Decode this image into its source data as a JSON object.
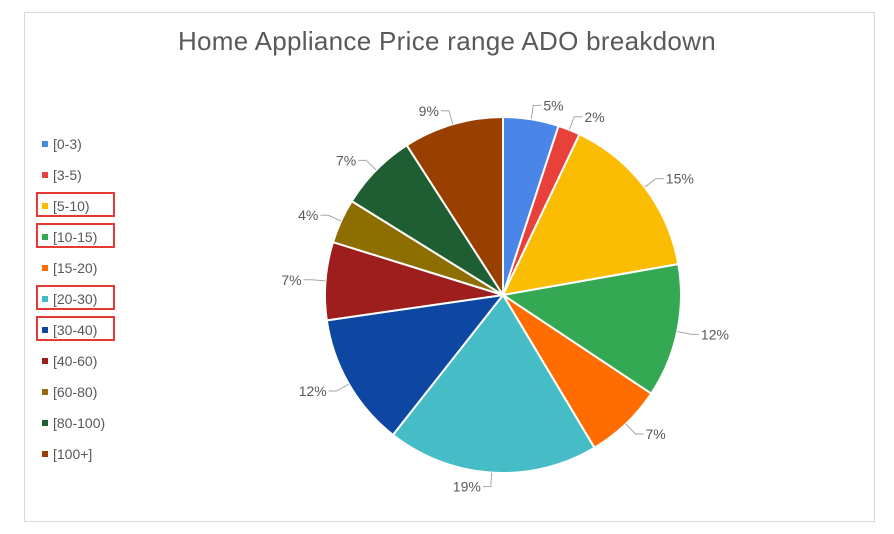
{
  "chart_data": {
    "type": "pie",
    "title": "Home Appliance Price range ADO breakdown",
    "legend_position": "left",
    "categories": [
      "[0-3)",
      "[3-5)",
      "[5-10)",
      "[10-15)",
      "[15-20)",
      "[20-30)",
      "[30-40)",
      "[40-60)",
      "[60-80)",
      "[80-100)",
      "[100+]"
    ],
    "values": [
      5,
      2,
      15,
      12,
      7,
      19,
      12,
      7,
      4,
      7,
      9
    ],
    "data_labels": [
      "5%",
      "2%",
      "15%",
      "12%",
      "7%",
      "19%",
      "12%",
      "7%",
      "4%",
      "7%",
      "9%"
    ],
    "colors": [
      "#4a86e8",
      "#e8403a",
      "#fbbc04",
      "#34a853",
      "#ff6d01",
      "#46bdc6",
      "#0d47a1",
      "#9e1d1d",
      "#8d6e00",
      "#1e5e32",
      "#994000"
    ],
    "highlighted_legend_entries": [
      "[5-10)",
      "[10-15)",
      "[20-30)",
      "[30-40)"
    ],
    "highlight_color": "#e53935"
  }
}
